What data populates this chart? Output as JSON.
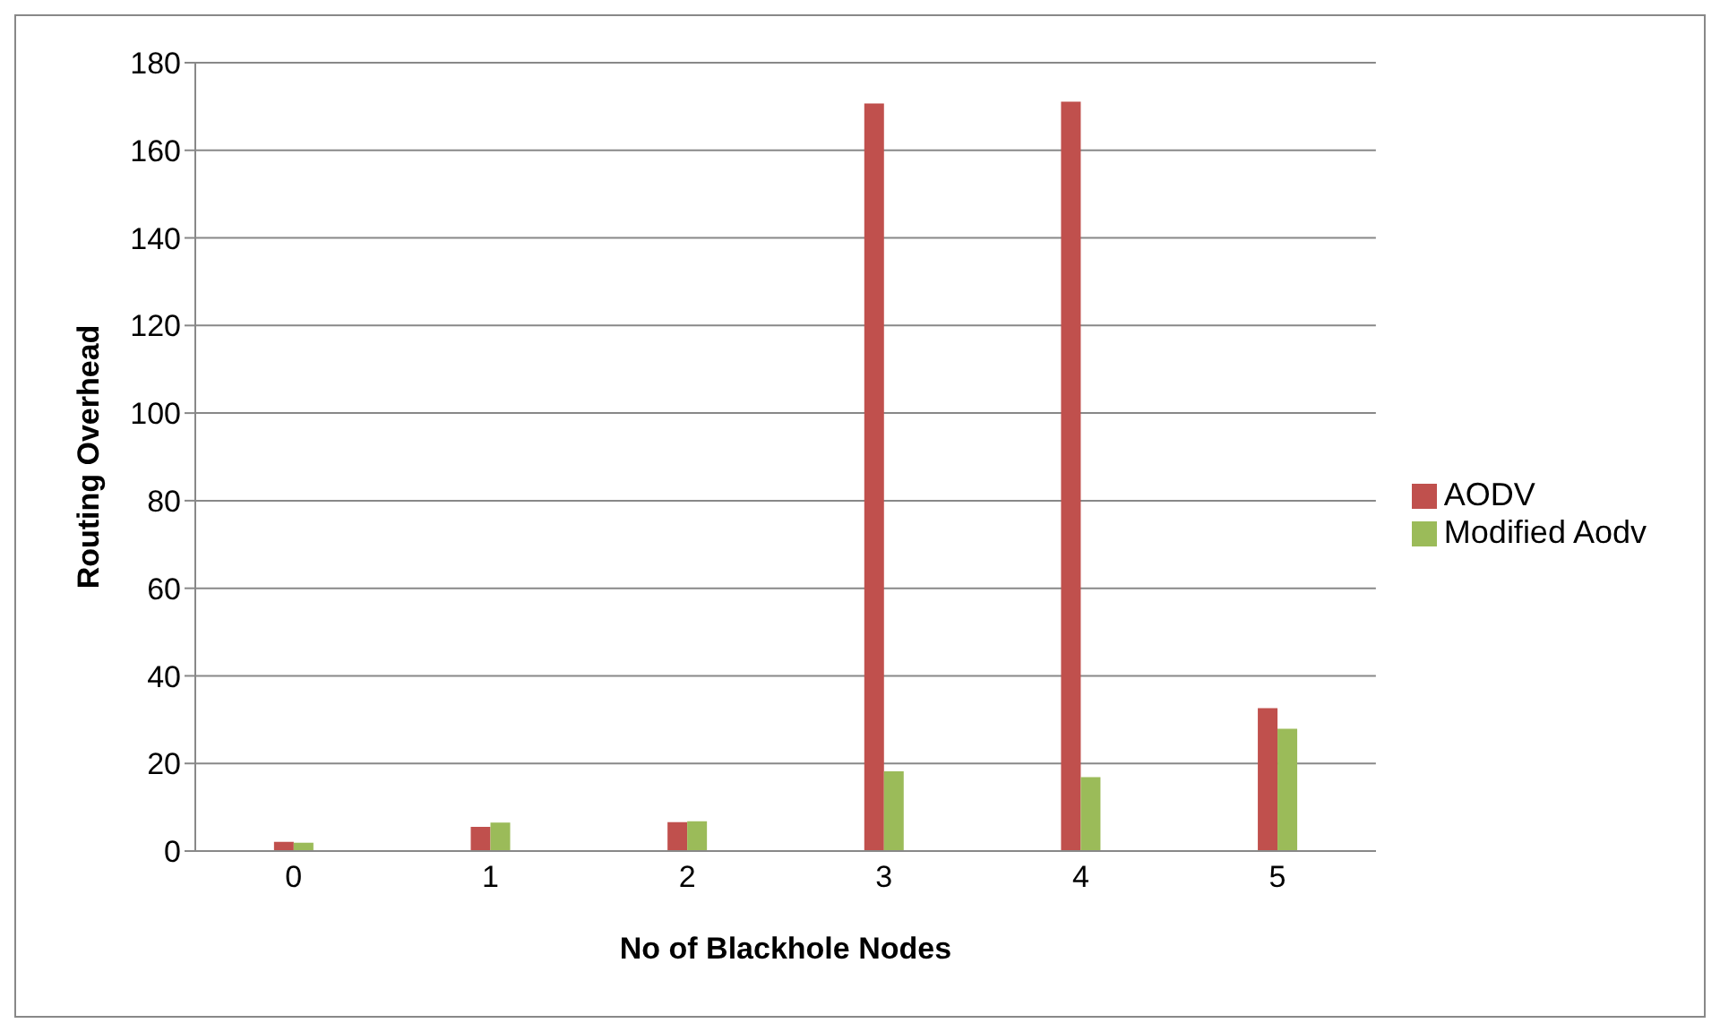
{
  "chart_data": {
    "type": "bar",
    "xlabel": "No of Blackhole Nodes",
    "ylabel": "Routing Overhead",
    "categories": [
      "0",
      "1",
      "2",
      "3",
      "4",
      "5"
    ],
    "series": [
      {
        "name": "AODV",
        "color": "#c0504d",
        "values": [
          2.1,
          5.5,
          6.6,
          170.7,
          171.1,
          32.6
        ]
      },
      {
        "name": "Modified Aodv",
        "color": "#9bbb59",
        "values": [
          1.9,
          6.5,
          6.8,
          18.2,
          16.9,
          27.9
        ]
      }
    ],
    "ylim": [
      0,
      180
    ],
    "yticks": [
      0,
      20,
      40,
      60,
      80,
      100,
      120,
      140,
      160,
      180
    ],
    "grid": "y",
    "legend": "right"
  }
}
